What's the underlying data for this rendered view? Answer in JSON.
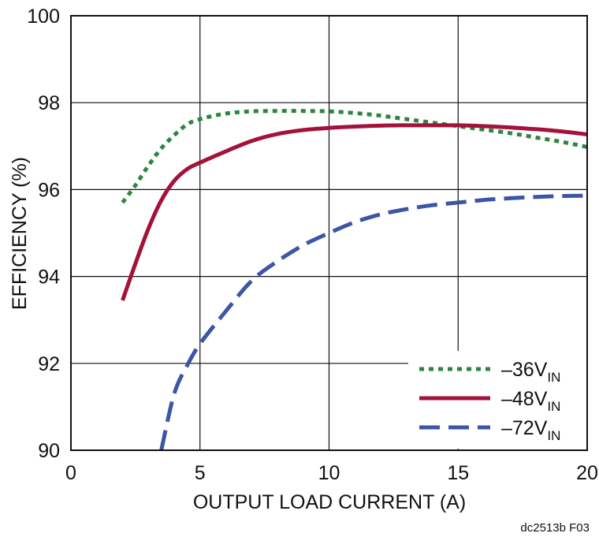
{
  "chart_data": {
    "type": "line",
    "xlabel": "OUTPUT LOAD CURRENT (A)",
    "ylabel": "EFFICIENCY (%)",
    "xlim": [
      0,
      20
    ],
    "ylim": [
      90,
      100
    ],
    "xticks": [
      "0",
      "5",
      "10",
      "15",
      "20"
    ],
    "yticks": [
      "90",
      "92",
      "94",
      "96",
      "98",
      "100"
    ],
    "grid": true,
    "legend_position": "bottom-right",
    "series": [
      {
        "name": "–36V",
        "name_sub": "IN",
        "color": "#2e8540",
        "style": "dotted",
        "x": [
          2,
          2.5,
          3,
          3.5,
          4,
          4.5,
          5,
          6,
          7,
          8,
          9,
          10,
          11,
          12,
          13,
          14,
          15,
          16,
          17,
          18,
          19,
          20
        ],
        "y": [
          95.7,
          96.1,
          96.55,
          96.95,
          97.25,
          97.5,
          97.62,
          97.75,
          97.8,
          97.81,
          97.81,
          97.8,
          97.76,
          97.7,
          97.62,
          97.54,
          97.46,
          97.38,
          97.3,
          97.2,
          97.1,
          96.98
        ]
      },
      {
        "name": "–48V",
        "name_sub": "IN",
        "color": "#a3123a",
        "style": "solid",
        "x": [
          2,
          2.5,
          3,
          3.5,
          4,
          4.5,
          5,
          6,
          7,
          8,
          9,
          10,
          11,
          12,
          13,
          14,
          15,
          16,
          17,
          18,
          19,
          20
        ],
        "y": [
          93.45,
          94.3,
          95.1,
          95.75,
          96.2,
          96.47,
          96.62,
          96.88,
          97.12,
          97.28,
          97.37,
          97.42,
          97.45,
          97.47,
          97.48,
          97.48,
          97.48,
          97.46,
          97.43,
          97.39,
          97.34,
          97.27
        ]
      },
      {
        "name": "–72V",
        "name_sub": "IN",
        "color": "#3c55a5",
        "style": "dashed",
        "x": [
          3.5,
          4,
          4.5,
          5,
          6,
          7,
          8,
          9,
          10,
          11,
          12,
          13,
          14,
          15,
          16,
          17,
          18,
          19,
          20
        ],
        "y": [
          90.0,
          91.3,
          91.95,
          92.45,
          93.2,
          93.9,
          94.35,
          94.72,
          95.0,
          95.25,
          95.43,
          95.55,
          95.64,
          95.7,
          95.76,
          95.8,
          95.83,
          95.85,
          95.86
        ]
      }
    ]
  },
  "figure_id": "dc2513b F03"
}
